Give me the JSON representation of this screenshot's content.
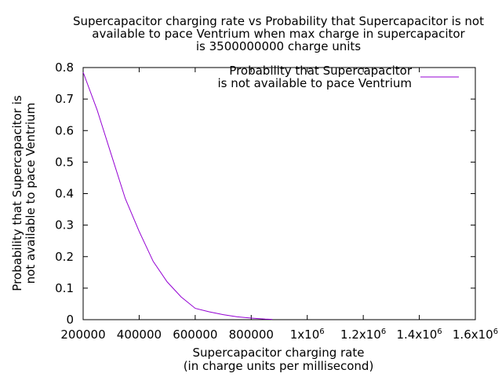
{
  "chart_data": {
    "type": "line",
    "title_lines": [
      "Supercapacitor charging rate vs Probability that Supercapacitor is not",
      "available to pace Ventrium when max charge in supercapacitor",
      "is 3500000000 charge units"
    ],
    "xlabel_lines": [
      "Supercapacitor charging rate",
      "(in charge units per millisecond)"
    ],
    "ylabel_lines": [
      "Probability that Supercapacitor is",
      "not available to pace Ventrium"
    ],
    "xlim": [
      200000,
      1600000
    ],
    "ylim": [
      0,
      0.8
    ],
    "x_ticks": [
      {
        "value": 200000,
        "base": "200000",
        "exp": ""
      },
      {
        "value": 400000,
        "base": "400000",
        "exp": ""
      },
      {
        "value": 600000,
        "base": "600000",
        "exp": ""
      },
      {
        "value": 800000,
        "base": "800000",
        "exp": ""
      },
      {
        "value": 1000000,
        "base": "1x10",
        "exp": "6"
      },
      {
        "value": 1200000,
        "base": "1.2x10",
        "exp": "6"
      },
      {
        "value": 1400000,
        "base": "1.4x10",
        "exp": "6"
      },
      {
        "value": 1600000,
        "base": "1.6x10",
        "exp": "6"
      }
    ],
    "y_ticks": [
      {
        "value": 0,
        "label": "0"
      },
      {
        "value": 0.1,
        "label": "0.1"
      },
      {
        "value": 0.2,
        "label": "0.2"
      },
      {
        "value": 0.3,
        "label": "0.3"
      },
      {
        "value": 0.4,
        "label": "0.4"
      },
      {
        "value": 0.5,
        "label": "0.5"
      },
      {
        "value": 0.6,
        "label": "0.6"
      },
      {
        "value": 0.7,
        "label": "0.7"
      },
      {
        "value": 0.8,
        "label": "0.8"
      }
    ],
    "grid": false,
    "legend_position": "top-right",
    "series": [
      {
        "name_lines": [
          "Probability that Supercapacitor",
          "is not available to pace Ventrium"
        ],
        "color": "#9400d3",
        "x": [
          200000,
          250000,
          300000,
          350000,
          400000,
          450000,
          500000,
          550000,
          600000,
          650000,
          700000,
          750000,
          800000,
          850000,
          875000
        ],
        "y": [
          0.785,
          0.665,
          0.525,
          0.385,
          0.28,
          0.185,
          0.12,
          0.072,
          0.036,
          0.025,
          0.016,
          0.009,
          0.005,
          0.002,
          0.001
        ]
      }
    ]
  }
}
